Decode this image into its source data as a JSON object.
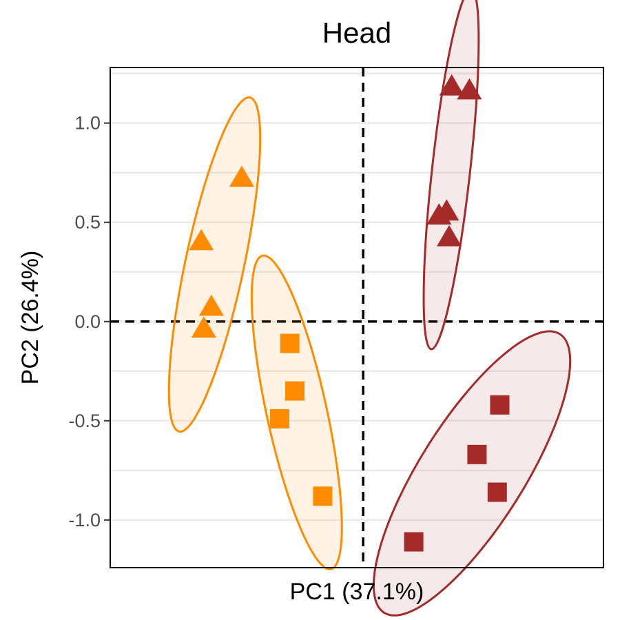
{
  "chart_data": {
    "type": "scatter",
    "title": "Head",
    "xlabel": "PC1 (37.1%)",
    "ylabel": "PC2 (26.4%)",
    "xlim": [
      -1.0,
      0.95
    ],
    "ylim": [
      -1.24,
      1.28
    ],
    "yticks": [
      1.0,
      0.5,
      0.0,
      -0.5,
      -1.0
    ],
    "ytick_labels": [
      "1.0",
      "0.5",
      "0.0",
      "-0.5",
      "-1.0"
    ],
    "x_ticks_shown": false,
    "grid": "horizontal",
    "reference_lines": {
      "x": 0,
      "y": 0,
      "style": "dashed"
    },
    "legend": "none",
    "groups": [
      {
        "shape": "triangle",
        "color": "#ff8c00",
        "ellipse": true,
        "points": [
          {
            "x": -0.64,
            "y": 0.4
          },
          {
            "x": -0.6,
            "y": 0.07
          },
          {
            "x": -0.63,
            "y": -0.04
          },
          {
            "x": -0.48,
            "y": 0.72
          }
        ]
      },
      {
        "shape": "square",
        "color": "#ff8c00",
        "ellipse": true,
        "points": [
          {
            "x": -0.29,
            "y": -0.11
          },
          {
            "x": -0.27,
            "y": -0.35
          },
          {
            "x": -0.33,
            "y": -0.49
          },
          {
            "x": -0.16,
            "y": -0.88
          }
        ]
      },
      {
        "shape": "triangle",
        "color": "#a52a2a",
        "ellipse": true,
        "points": [
          {
            "x": 0.35,
            "y": 1.18
          },
          {
            "x": 0.42,
            "y": 1.16
          },
          {
            "x": 0.33,
            "y": 0.55
          },
          {
            "x": 0.3,
            "y": 0.53
          },
          {
            "x": 0.34,
            "y": 0.42
          }
        ]
      },
      {
        "shape": "square",
        "color": "#a52a2a",
        "ellipse": true,
        "points": [
          {
            "x": 0.54,
            "y": -0.42
          },
          {
            "x": 0.45,
            "y": -0.67
          },
          {
            "x": 0.53,
            "y": -0.86
          },
          {
            "x": 0.2,
            "y": -1.11
          }
        ]
      }
    ]
  }
}
